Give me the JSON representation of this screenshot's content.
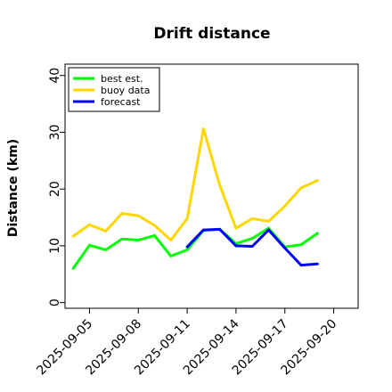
{
  "chart_data": {
    "type": "line",
    "title": "Drift distance",
    "xlabel": "",
    "ylabel": "Distance (km)",
    "ylim": [
      -1,
      42
    ],
    "xlim": [
      "2025-09-03T12:00",
      "2025-09-21T12:00"
    ],
    "yticks": [
      0,
      10,
      20,
      30,
      40
    ],
    "xticks": [
      "2025-09-05",
      "2025-09-08",
      "2025-09-11",
      "2025-09-14",
      "2025-09-17",
      "2025-09-20"
    ],
    "highlighted_xtick": "2025-09-11",
    "highlight_color": "#2e8b2e",
    "grid": false,
    "legend_position": "top-left",
    "series": [
      {
        "name": "best est.",
        "color": "#00ff00",
        "x": [
          "2025-09-04",
          "2025-09-05",
          "2025-09-06",
          "2025-09-07",
          "2025-09-08",
          "2025-09-09",
          "2025-09-10",
          "2025-09-11",
          "2025-09-12",
          "2025-09-13",
          "2025-09-14",
          "2025-09-15",
          "2025-09-16",
          "2025-09-17",
          "2025-09-18",
          "2025-09-19"
        ],
        "values": [
          6.0,
          10.1,
          9.3,
          11.2,
          11.0,
          11.8,
          8.2,
          9.3,
          12.7,
          12.9,
          10.4,
          11.3,
          13.1,
          9.8,
          10.2,
          12.2
        ]
      },
      {
        "name": "buoy data",
        "color": "#ffd700",
        "x": [
          "2025-09-04",
          "2025-09-05",
          "2025-09-06",
          "2025-09-07",
          "2025-09-08",
          "2025-09-09",
          "2025-09-10",
          "2025-09-11",
          "2025-09-12",
          "2025-09-13",
          "2025-09-14",
          "2025-09-15",
          "2025-09-16",
          "2025-09-17",
          "2025-09-18",
          "2025-09-19"
        ],
        "values": [
          11.7,
          13.7,
          12.6,
          15.7,
          15.3,
          13.6,
          11.0,
          14.8,
          30.6,
          20.7,
          13.1,
          14.8,
          14.3,
          17.0,
          20.2,
          21.5
        ]
      },
      {
        "name": "forecast",
        "color": "#0000ff",
        "x": [
          "2025-09-11",
          "2025-09-12",
          "2025-09-13",
          "2025-09-14",
          "2025-09-15",
          "2025-09-16",
          "2025-09-17",
          "2025-09-18",
          "2025-09-19"
        ],
        "values": [
          9.8,
          12.8,
          12.9,
          10.0,
          9.9,
          12.8,
          9.6,
          6.6,
          6.8
        ]
      }
    ]
  }
}
